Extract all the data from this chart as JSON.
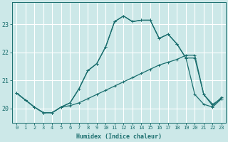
{
  "xlabel": "Humidex (Indice chaleur)",
  "ylabel": "",
  "bg_color": "#cce8e8",
  "grid_color": "#b0d4d4",
  "line_color": "#1a6e6e",
  "xlim": [
    -0.5,
    23.5
  ],
  "ylim": [
    19.5,
    23.8
  ],
  "yticks": [
    20,
    21,
    22,
    23
  ],
  "xticks": [
    0,
    1,
    2,
    3,
    4,
    5,
    6,
    7,
    8,
    9,
    10,
    11,
    12,
    13,
    14,
    15,
    16,
    17,
    18,
    19,
    20,
    21,
    22,
    23
  ],
  "line1_x": [
    0,
    1,
    2,
    3,
    4,
    5,
    6,
    7,
    8,
    9,
    10,
    11,
    12,
    13,
    14,
    15,
    16,
    17,
    18,
    19,
    20,
    21,
    22,
    23
  ],
  "line1_y": [
    20.55,
    20.3,
    20.05,
    19.85,
    19.85,
    20.05,
    20.1,
    20.2,
    20.35,
    20.5,
    20.65,
    20.8,
    20.95,
    21.1,
    21.25,
    21.4,
    21.55,
    21.65,
    21.75,
    21.9,
    21.9,
    20.5,
    20.1,
    20.4
  ],
  "line2_x": [
    0,
    1,
    2,
    3,
    4,
    5,
    6,
    7,
    8,
    9,
    10,
    11,
    12,
    13,
    14,
    15,
    16,
    17,
    18,
    19,
    20,
    21,
    22,
    23
  ],
  "line2_y": [
    20.55,
    20.3,
    20.05,
    19.85,
    19.85,
    20.05,
    20.2,
    20.7,
    21.35,
    21.6,
    22.2,
    23.1,
    23.3,
    23.1,
    23.15,
    23.15,
    22.5,
    22.65,
    22.3,
    21.8,
    20.5,
    20.15,
    20.05,
    20.35
  ],
  "line3_x": [
    0,
    1,
    2,
    3,
    4,
    5,
    6,
    7,
    8,
    9,
    10,
    11,
    12,
    13,
    14,
    15,
    16,
    17,
    18,
    19,
    20,
    21,
    22,
    23
  ],
  "line3_y": [
    20.55,
    20.3,
    20.05,
    19.85,
    19.85,
    20.05,
    20.2,
    20.7,
    21.35,
    21.6,
    22.2,
    23.1,
    23.3,
    23.1,
    23.15,
    23.15,
    22.5,
    22.65,
    22.3,
    21.8,
    21.8,
    20.5,
    20.15,
    20.35
  ]
}
